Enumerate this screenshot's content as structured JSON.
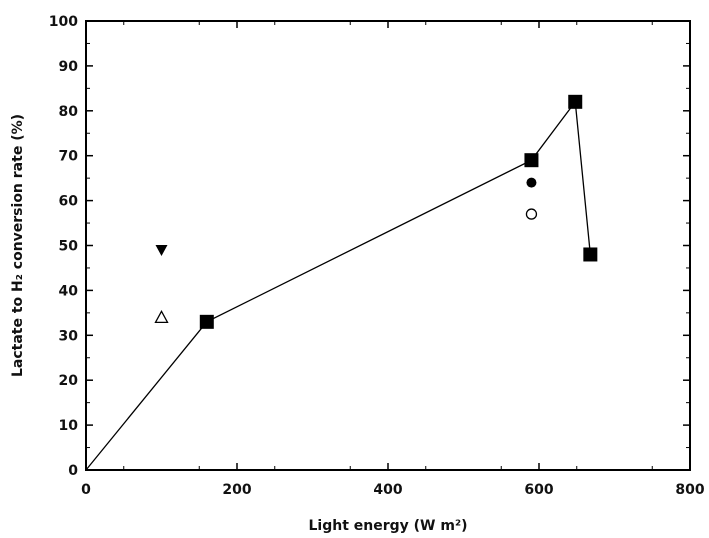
{
  "chart_data": {
    "type": "scatter",
    "xlabel": "Light energy (W m²)",
    "ylabel": "Lactate to H₂ conversion rate (%)",
    "xlim": [
      0,
      800
    ],
    "ylim": [
      0,
      100
    ],
    "x_ticks": [
      0,
      200,
      400,
      600,
      800
    ],
    "y_ticks": [
      0,
      10,
      20,
      30,
      40,
      50,
      60,
      70,
      80,
      90,
      100
    ],
    "x_tick_labels": [
      "0",
      "200",
      "400",
      "600",
      "800"
    ],
    "y_tick_labels": [
      "0",
      "10",
      "20",
      "30",
      "40",
      "50",
      "60",
      "70",
      "80",
      "90",
      "100"
    ],
    "grid": false,
    "legend": "none",
    "series": [
      {
        "marker": "filled-square",
        "line": true,
        "points": [
          {
            "x": 0,
            "y": 0,
            "marker": "none"
          },
          {
            "x": 160,
            "y": 33
          },
          {
            "x": 590,
            "y": 69
          },
          {
            "x": 648,
            "y": 82
          },
          {
            "x": 668,
            "y": 48
          }
        ]
      },
      {
        "marker": "filled-triangle-down",
        "line": false,
        "points": [
          {
            "x": 100,
            "y": 49
          }
        ]
      },
      {
        "marker": "open-triangle-up",
        "line": false,
        "points": [
          {
            "x": 100,
            "y": 34
          }
        ]
      },
      {
        "marker": "filled-circle",
        "line": false,
        "points": [
          {
            "x": 590,
            "y": 64
          }
        ]
      },
      {
        "marker": "open-circle",
        "line": false,
        "points": [
          {
            "x": 590,
            "y": 57
          }
        ]
      }
    ]
  }
}
